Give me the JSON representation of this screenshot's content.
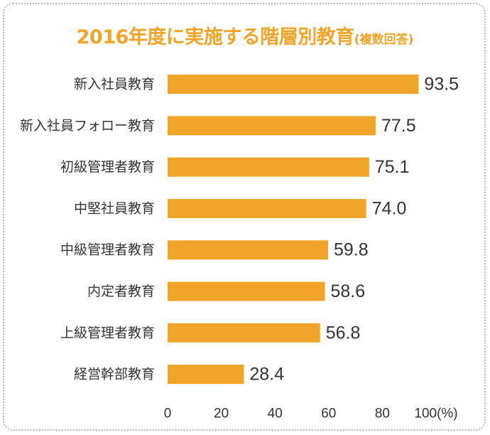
{
  "chart_data": {
    "type": "bar",
    "orientation": "horizontal",
    "title": "2016年度に実施する階層別教育",
    "subtitle": "(複数回答)",
    "categories": [
      "新入社員教育",
      "新入社員フォロー教育",
      "初級管理者教育",
      "中堅社員教育",
      "中級管理者教育",
      "内定者教育",
      "上級管理者教育",
      "経営幹部教育"
    ],
    "values": [
      93.5,
      77.5,
      75.1,
      74.0,
      59.8,
      58.6,
      56.8,
      28.4
    ],
    "value_labels": [
      "93.5",
      "77.5",
      "75.1",
      "74.0",
      "59.8",
      "58.6",
      "56.8",
      "28.4"
    ],
    "xlim": [
      0,
      100
    ],
    "xticks": [
      "0",
      "20",
      "40",
      "60",
      "80",
      "100(%)"
    ],
    "xtick_values": [
      0,
      20,
      40,
      60,
      80,
      100
    ],
    "grid": false,
    "colors": {
      "bar": "#f0a52a",
      "title": "#f0a52a",
      "border": "#b9b9b9",
      "text": "#333333"
    }
  }
}
